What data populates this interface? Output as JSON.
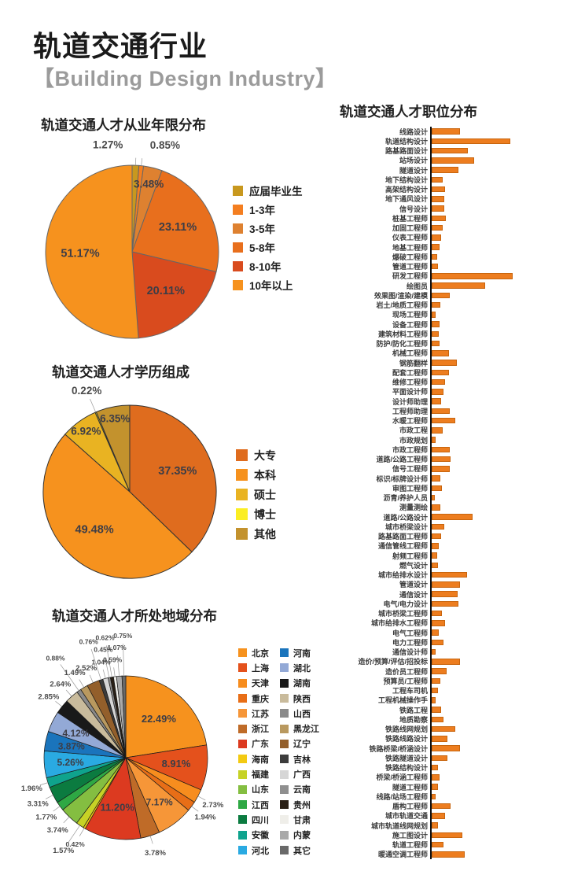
{
  "header": {
    "title": "轨道交通行业",
    "subtitle": "【Building Design Industry】"
  },
  "accent_color": "#ED7D1F",
  "chart_data": [
    {
      "type": "pie",
      "title": "轨道交通人才从业年限分布",
      "labels": [
        "应届毕业生",
        "1-3年",
        "3-5年",
        "5-8年",
        "8-10年",
        "10年以上"
      ],
      "values": [
        1.27,
        0.85,
        3.48,
        23.11,
        20.11,
        51.17
      ],
      "colors": [
        "#C8981E",
        "#F47E20",
        "#DE8130",
        "#E86F1D",
        "#D94B1E",
        "#F6921E"
      ],
      "value_suffix": "%",
      "legend_position": "right",
      "start_angle_deg": 0,
      "clockwise": true
    },
    {
      "type": "pie",
      "title": "轨道交通人才学历组成",
      "labels": [
        "大专",
        "本科",
        "硕士",
        "博士",
        "其他"
      ],
      "values": [
        37.35,
        49.48,
        6.92,
        0.22,
        6.35
      ],
      "colors": [
        "#DF6C1E",
        "#F6921E",
        "#E9B322",
        "#FBEE23",
        "#C3922D"
      ],
      "value_suffix": "%",
      "legend_position": "right",
      "start_angle_deg": 0,
      "clockwise": true
    },
    {
      "type": "pie",
      "title": "轨道交通人才所处地域分布",
      "labels": [
        "北京",
        "上海",
        "天津",
        "重庆",
        "江苏",
        "浙江",
        "广东",
        "海南",
        "福建",
        "山东",
        "江西",
        "四川",
        "安徽",
        "河北",
        "河南",
        "湖北",
        "湖南",
        "陕西",
        "山西",
        "黑龙江",
        "辽宁",
        "吉林",
        "广西",
        "云南",
        "贵州",
        "甘肃",
        "内蒙",
        "其它"
      ],
      "values": [
        22.49,
        8.91,
        2.73,
        1.94,
        7.17,
        3.78,
        11.2,
        0.42,
        1.57,
        3.74,
        1.77,
        3.31,
        1.96,
        5.26,
        3.87,
        4.12,
        2.85,
        2.64,
        0.88,
        1.49,
        2.52,
        0.76,
        1.04,
        0.45,
        0.62,
        0.59,
        1.07,
        0.75
      ],
      "colors": [
        "#F6921E",
        "#E4511C",
        "#F78D1E",
        "#E86E17",
        "#F69638",
        "#BF6B28",
        "#DC3A20",
        "#F3CA12",
        "#C6D226",
        "#84BE41",
        "#2EA844",
        "#0B7B40",
        "#0FA38D",
        "#2AAAE2",
        "#1A74BC",
        "#93A9D6",
        "#191919",
        "#C9BB9C",
        "#8A8A8A",
        "#B9995F",
        "#935F2B",
        "#3C3C3C",
        "#D6D6D6",
        "#8F8F8F",
        "#291F15",
        "#EFEEE9",
        "#A9A9A9",
        "#696969"
      ],
      "value_suffix": "%",
      "legend_position": "right",
      "legend_columns": 2,
      "start_angle_deg": 0,
      "clockwise": true
    },
    {
      "type": "bar",
      "orientation": "horizontal",
      "title": "轨道交通人才职位分布",
      "bar_color": "#ED7D1F",
      "axis_labels_shown": false,
      "xlim": [
        0,
        105
      ],
      "categories": [
        "线路设计",
        "轨道结构设计",
        "路基路面设计",
        "站场设计",
        "隧道设计",
        "地下结构设计",
        "高架结构设计",
        "地下通风设计",
        "信号设计",
        "桩基工程师",
        "加固工程师",
        "仪表工程师",
        "地基工程师",
        "爆破工程师",
        "管道工程师",
        "研发工程师",
        "绘图员",
        "效果图/渲染/建模",
        "岩土/地质工程师",
        "现场工程师",
        "设备工程师",
        "建筑材料工程师",
        "防护/防化工程师",
        "机械工程师",
        "钢筋翻样",
        "配套工程师",
        "维修工程师",
        "平面设计师",
        "设计师助理",
        "工程师助理",
        "水暖工程师",
        "市政工程",
        "市政规划",
        "市政工程师",
        "道路/公路工程师",
        "信号工程师",
        "标识/标牌设计师",
        "审图工程师",
        "沥青/养护人员",
        "测量测绘",
        "道路/公路设计",
        "城市桥梁设计",
        "路基路面工程师",
        "通信管线工程师",
        "射频工程师",
        "燃气设计",
        "城市给排水设计",
        "管道设计",
        "通信设计",
        "电气/电力设计",
        "城市桥梁工程师",
        "城市给排水工程师",
        "电气工程师",
        "电力工程师",
        "通信设计师",
        "造价/预算/评估/招投标",
        "造价员工程师",
        "预算员/工程师",
        "工程车司机",
        "工程机械操作手",
        "铁路工程",
        "地质勘察",
        "铁路线网规划",
        "铁路线路设计",
        "铁路桥梁/桥涵设计",
        "铁路隧道设计",
        "铁路结构设计",
        "桥梁/桥涵工程师",
        "隧道工程师",
        "线路/站场工程师",
        "盾构工程师",
        "城市轨道交通",
        "城市轨道线网规划",
        "施工图设计",
        "轨道工程师",
        "暖通空调工程师"
      ],
      "values": [
        36,
        100,
        46,
        54,
        34,
        14,
        17,
        16,
        16,
        18,
        14,
        12,
        10,
        7,
        8,
        103,
        68,
        23,
        11,
        5,
        10,
        9,
        10,
        22,
        32,
        22,
        17,
        15,
        12,
        23,
        30,
        14,
        5,
        23,
        24,
        23,
        11,
        13,
        4,
        11,
        52,
        16,
        12,
        9,
        7,
        8,
        45,
        36,
        33,
        34,
        13,
        17,
        9,
        15,
        5,
        36,
        19,
        11,
        8,
        5,
        12,
        15,
        30,
        20,
        36,
        20,
        8,
        10,
        8,
        5,
        24,
        17,
        8,
        39,
        15,
        42
      ]
    }
  ]
}
